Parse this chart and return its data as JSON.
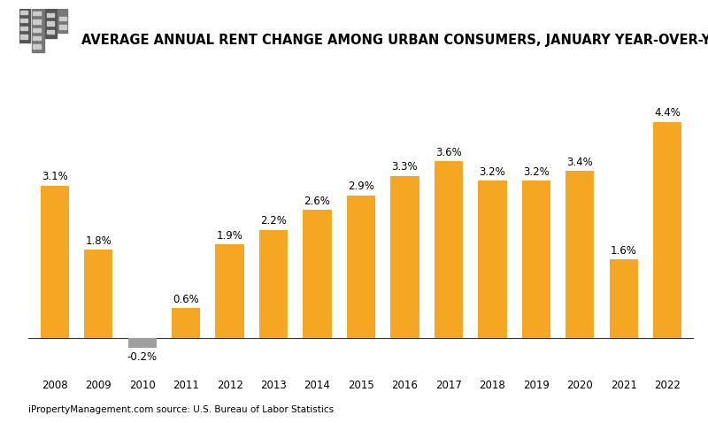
{
  "title": "AVERAGE ANNUAL RENT CHANGE AMONG URBAN CONSUMERS, JANUARY YEAR-OVER-YEAR",
  "categories": [
    "2008",
    "2009",
    "2010",
    "2011",
    "2012",
    "2013",
    "2014",
    "2015",
    "2016",
    "2017",
    "2018",
    "2019",
    "2020",
    "2021",
    "2022"
  ],
  "values": [
    3.1,
    1.8,
    -0.2,
    0.6,
    1.9,
    2.2,
    2.6,
    2.9,
    3.3,
    3.6,
    3.2,
    3.2,
    3.4,
    1.6,
    4.4
  ],
  "bar_color_positive": "#F5A623",
  "bar_color_negative": "#9E9E9E",
  "background_color": "#FFFFFF",
  "title_fontsize": 10.5,
  "label_fontsize": 8.5,
  "tick_fontsize": 8.5,
  "source_text": "iPropertyManagement.com source: U.S. Bureau of Labor Statistics",
  "source_fontsize": 7.5,
  "ylim_min": -0.7,
  "ylim_max": 5.5
}
